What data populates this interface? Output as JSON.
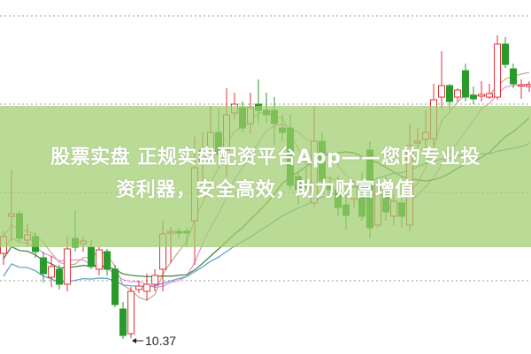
{
  "banner": {
    "line1": "股票实盘 正规实盘配资平台App——您的专业投",
    "line2": "资利器，安全高效，助力财富增值"
  },
  "chart_data": {
    "type": "candlestick",
    "title": "",
    "grid": true,
    "colors": {
      "up": "#e0303a",
      "down": "#2a9a2a",
      "ma1": "#5a9fc8",
      "ma2": "#e58be0",
      "ma3": "#3f7f3f",
      "ma4": "#c8a888",
      "banner": "#a0cd6e"
    },
    "annotation": {
      "label": "10.37",
      "candle_index": 16
    },
    "ohlc": [
      [
        11.33,
        11.58,
        11.2,
        11.52
      ],
      [
        11.75,
        12.27,
        11.47,
        11.78
      ],
      [
        11.78,
        11.82,
        11.45,
        11.5
      ],
      [
        11.48,
        11.67,
        11.4,
        11.54
      ],
      [
        11.52,
        11.58,
        11.28,
        11.35
      ],
      [
        11.28,
        11.35,
        11.0,
        11.1
      ],
      [
        11.06,
        11.3,
        10.95,
        11.18
      ],
      [
        11.15,
        11.2,
        10.92,
        10.98
      ],
      [
        10.98,
        11.52,
        10.9,
        11.38
      ],
      [
        11.5,
        11.82,
        11.35,
        11.4
      ],
      [
        11.44,
        11.52,
        11.35,
        11.47
      ],
      [
        11.4,
        11.48,
        11.15,
        11.18
      ],
      [
        11.15,
        11.4,
        11.08,
        11.37
      ],
      [
        11.35,
        11.38,
        11.08,
        11.15
      ],
      [
        11.15,
        11.2,
        10.72,
        10.75
      ],
      [
        10.7,
        10.78,
        10.36,
        10.4
      ],
      [
        10.42,
        10.95,
        10.37,
        10.9
      ],
      [
        10.92,
        11.02,
        10.88,
        10.96
      ],
      [
        10.9,
        11.1,
        10.8,
        10.98
      ],
      [
        10.98,
        11.15,
        10.9,
        11.08
      ],
      [
        11.15,
        11.7,
        10.9,
        11.55
      ],
      [
        11.56,
        11.63,
        11.22,
        11.58
      ],
      [
        11.58,
        11.62,
        11.5,
        11.56
      ],
      [
        11.58,
        11.62,
        11.4,
        11.56
      ],
      [
        11.7,
        12.65,
        11.2,
        12.3
      ],
      [
        12.35,
        12.7,
        12.15,
        12.5
      ],
      [
        12.52,
        13.0,
        12.42,
        12.7
      ],
      [
        12.7,
        12.98,
        12.3,
        12.45
      ],
      [
        12.5,
        13.2,
        12.2,
        12.9
      ],
      [
        12.92,
        13.15,
        12.85,
        13.02
      ],
      [
        12.98,
        13.05,
        12.7,
        12.75
      ],
      [
        12.8,
        13.15,
        12.68,
        12.98
      ],
      [
        13.02,
        13.3,
        12.8,
        12.95
      ],
      [
        12.95,
        13.15,
        12.8,
        12.9
      ],
      [
        12.95,
        13.1,
        12.55,
        12.8
      ],
      [
        12.75,
        12.9,
        12.6,
        12.7
      ],
      [
        12.75,
        12.9,
        12.05,
        12.1
      ],
      [
        12.2,
        12.25,
        11.88,
        12.05
      ],
      [
        12.1,
        12.3,
        12.05,
        12.08
      ],
      [
        11.9,
        13.0,
        11.85,
        12.6
      ],
      [
        12.6,
        12.7,
        12.12,
        12.15
      ],
      [
        12.1,
        12.2,
        12.0,
        12.05
      ],
      [
        12.05,
        12.2,
        11.75,
        11.85
      ],
      [
        11.88,
        12.05,
        11.6,
        11.76
      ],
      [
        11.95,
        12.15,
        11.85,
        12.08
      ],
      [
        12.15,
        12.25,
        11.7,
        11.75
      ],
      [
        12.5,
        12.6,
        11.5,
        11.62
      ],
      [
        11.65,
        12.15,
        11.62,
        12.1
      ],
      [
        12.05,
        12.2,
        11.7,
        11.8
      ],
      [
        11.75,
        12.0,
        11.65,
        11.92
      ],
      [
        11.9,
        11.95,
        11.62,
        11.75
      ],
      [
        11.65,
        12.8,
        11.58,
        12.55
      ],
      [
        12.58,
        12.75,
        12.52,
        12.6
      ],
      [
        12.62,
        12.95,
        12.5,
        12.7
      ],
      [
        12.63,
        13.25,
        12.55,
        13.07
      ],
      [
        13.1,
        13.62,
        12.97,
        13.23
      ],
      [
        13.23,
        13.25,
        12.95,
        13.05
      ],
      [
        13.1,
        13.2,
        13.05,
        13.18
      ],
      [
        13.4,
        13.48,
        13.05,
        13.1
      ],
      [
        13.12,
        13.22,
        13.02,
        13.08
      ],
      [
        13.11,
        13.28,
        13.05,
        13.13
      ],
      [
        13.1,
        13.25,
        13.08,
        13.14
      ],
      [
        13.1,
        13.8,
        13.07,
        13.7
      ],
      [
        13.7,
        13.78,
        13.43,
        13.47
      ],
      [
        13.42,
        13.48,
        13.2,
        13.25
      ],
      [
        13.23,
        13.3,
        13.08,
        13.24
      ],
      [
        13.22,
        13.28,
        13.16,
        13.24
      ]
    ]
  }
}
